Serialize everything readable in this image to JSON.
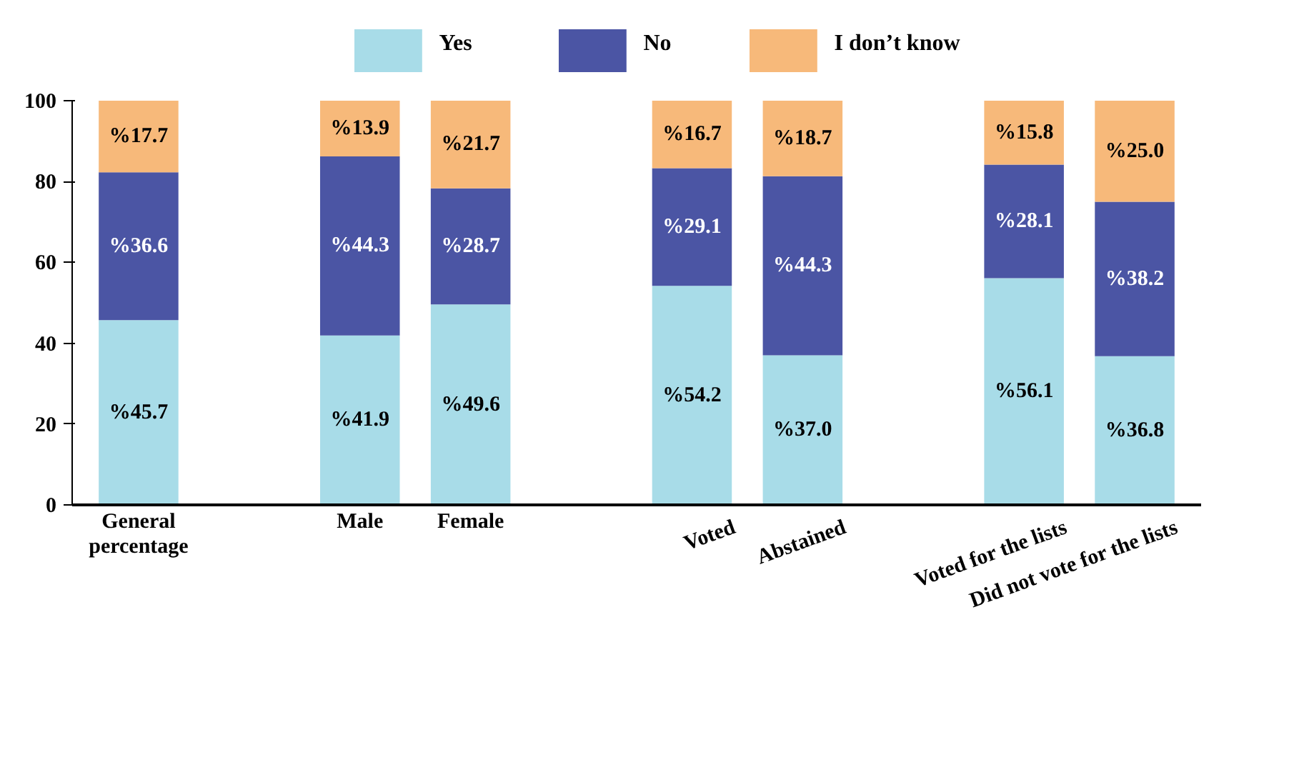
{
  "chart_data": {
    "type": "bar",
    "stacked": true,
    "legend": "top",
    "grid": false,
    "categories": [
      "General percentage",
      null,
      "Male",
      "Female",
      null,
      "Voted",
      "Abstained",
      null,
      "Voted for the lists",
      "Did not vote for the lists"
    ],
    "ylim": [
      0,
      100
    ],
    "yticks": [
      0,
      20,
      40,
      60,
      80,
      100
    ],
    "series": [
      {
        "name": "Yes",
        "color": "#a8dce8",
        "values": [
          45.7,
          null,
          41.9,
          49.6,
          null,
          54.2,
          37.0,
          null,
          56.1,
          36.8
        ],
        "value_labels": [
          "%45.7",
          null,
          "%41.9",
          "%49.6",
          null,
          "%54.2",
          "%37.0",
          null,
          "%56.1",
          "%36.8"
        ]
      },
      {
        "name": "No",
        "color": "#4b55a4",
        "values": [
          36.6,
          null,
          44.3,
          28.7,
          null,
          29.1,
          44.3,
          null,
          28.1,
          38.2
        ],
        "value_labels": [
          "%36.6",
          null,
          "%44.3",
          "%28.7",
          null,
          "%29.1",
          "%44.3",
          null,
          "%28.1",
          "%38.2"
        ]
      },
      {
        "name": "I don’t know",
        "color": "#f7b97a",
        "values": [
          17.7,
          null,
          13.9,
          21.7,
          null,
          16.7,
          18.7,
          null,
          15.8,
          25.0
        ],
        "value_labels": [
          "%17.7",
          null,
          "%13.9",
          "%21.7",
          null,
          "%16.7",
          "%18.7",
          null,
          "%15.8",
          "%25.0"
        ]
      }
    ]
  }
}
